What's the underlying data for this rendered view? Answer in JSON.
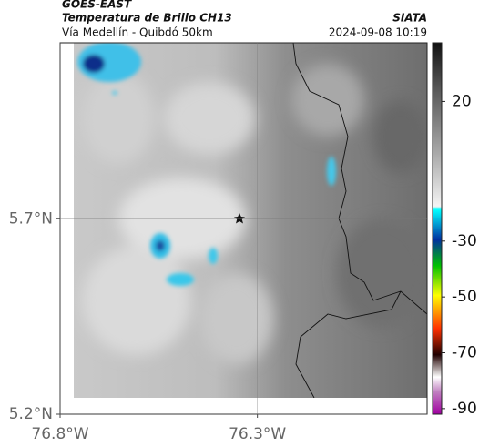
{
  "header": {
    "title": "GOES-EAST",
    "subtitle": "Temperatura de Brillo CH13",
    "location": "Vía Medellín - Quibdó 50km",
    "source": "SIATA",
    "datetime": "2024-09-08 10:19"
  },
  "map": {
    "xlim": [
      -76.8,
      -75.87
    ],
    "ylim": [
      5.2,
      6.15
    ],
    "xticks": [
      {
        "value": -76.8,
        "label": "76.8°W"
      },
      {
        "value": -76.3,
        "label": "76.3°W"
      }
    ],
    "yticks": [
      {
        "value": 5.7,
        "label": "5.7°N"
      },
      {
        "value": 5.2,
        "label": "5.2°N"
      }
    ],
    "grid": true
  },
  "colorbar": {
    "clim": [
      41,
      -92
    ],
    "ticks": [
      20,
      -30,
      -50,
      -70,
      -90
    ]
  }
}
